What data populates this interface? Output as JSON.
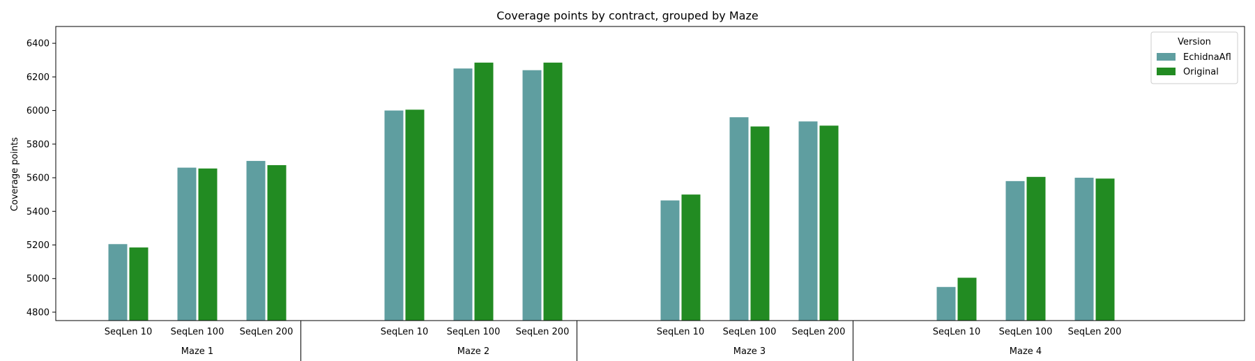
{
  "chart_data": {
    "type": "bar",
    "title": "Coverage points by contract, grouped by Maze",
    "xlabel": "",
    "ylabel": "Coverage points",
    "ylim": [
      4750,
      6500
    ],
    "yticks": [
      4800,
      5000,
      5200,
      5400,
      5600,
      5800,
      6000,
      6200,
      6400
    ],
    "grid": false,
    "legend": {
      "title": "Version",
      "position": "top-right"
    },
    "groups": [
      {
        "label": "Maze 1",
        "categories": [
          "SeqLen 10",
          "SeqLen 100",
          "SeqLen 200"
        ]
      },
      {
        "label": "Maze 2",
        "categories": [
          "SeqLen 10",
          "SeqLen 100",
          "SeqLen 200"
        ]
      },
      {
        "label": "Maze 3",
        "categories": [
          "SeqLen 10",
          "SeqLen 100",
          "SeqLen 200"
        ]
      },
      {
        "label": "Maze 4",
        "categories": [
          "SeqLen 10",
          "SeqLen 100",
          "SeqLen 200"
        ]
      }
    ],
    "series": [
      {
        "name": "EchidnaAfl",
        "color": "#5f9ea0",
        "values": [
          5205,
          5660,
          5700,
          6000,
          6250,
          6240,
          5465,
          5960,
          5935,
          4950,
          5580,
          5600
        ]
      },
      {
        "name": "Original",
        "color": "#228b22",
        "values": [
          5185,
          5655,
          5675,
          6005,
          6285,
          6285,
          5500,
          5905,
          5910,
          5005,
          5605,
          5595
        ]
      }
    ]
  }
}
